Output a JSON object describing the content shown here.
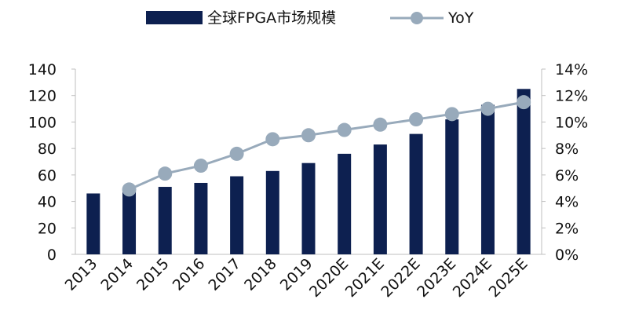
{
  "chart_data": {
    "type": "bar",
    "categories": [
      "2013",
      "2014",
      "2015",
      "2016",
      "2017",
      "2018",
      "2019",
      "2020E",
      "2021E",
      "2022E",
      "2023E",
      "2024E",
      "2025E"
    ],
    "series": [
      {
        "name": "全球FPGA市场规模",
        "type": "bar",
        "axis": "left",
        "values": [
          46,
          48,
          51,
          54,
          59,
          63,
          69,
          76,
          83,
          91,
          102,
          113,
          125
        ],
        "color": "#0d2050"
      },
      {
        "name": "YoY",
        "type": "line",
        "axis": "right",
        "values": [
          null,
          4.9,
          6.1,
          6.7,
          7.6,
          8.7,
          9.0,
          9.4,
          9.8,
          10.2,
          10.6,
          11.0,
          11.5
        ],
        "color": "#98aabb"
      }
    ],
    "y_left": {
      "min": 0,
      "max": 140,
      "ticks": [
        "0",
        "20",
        "40",
        "60",
        "80",
        "100",
        "120",
        "140"
      ]
    },
    "y_right": {
      "min": 0,
      "max": 14,
      "ticks": [
        "0%",
        "2%",
        "4%",
        "6%",
        "8%",
        "10%",
        "12%",
        "14%"
      ]
    },
    "legend_position": "top",
    "grid": false
  }
}
